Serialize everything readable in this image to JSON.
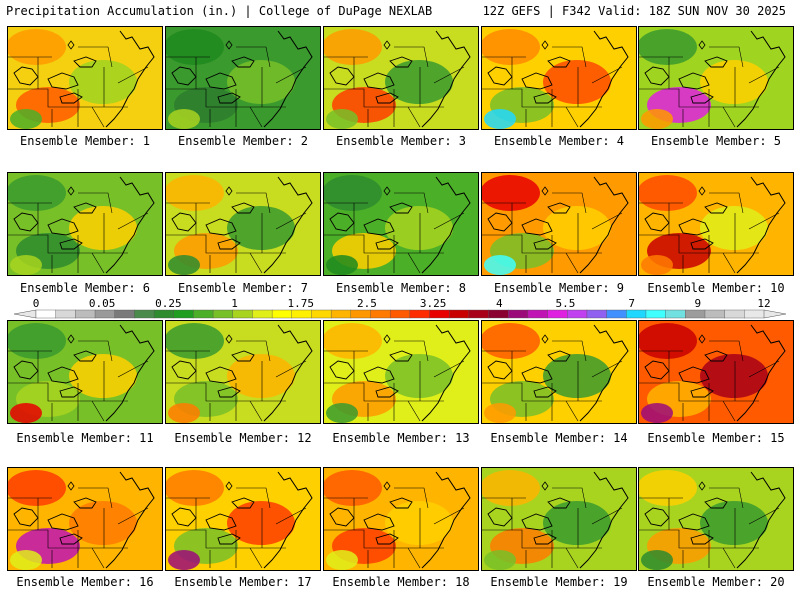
{
  "header": {
    "left": "Precipitation Accumulation (in.) | College of DuPage NEXLAB",
    "right": "12Z GEFS | F342 Valid: 18Z SUN NOV 30 2025"
  },
  "colorbar": {
    "tick_labels": [
      "0",
      "0.05",
      "0.25",
      "1",
      "1.75",
      "2.5",
      "3.25",
      "4",
      "5.5",
      "7",
      "9",
      "12"
    ],
    "colors": [
      "#ffffff",
      "#d8d8d8",
      "#bcbcbc",
      "#9a9a9a",
      "#7a7a7a",
      "#4a8a4a",
      "#2e8b2e",
      "#1f9e1f",
      "#4caf28",
      "#78c028",
      "#a8d420",
      "#e0ef1a",
      "#ffff00",
      "#fff000",
      "#ffd800",
      "#ffb400",
      "#ff9800",
      "#ff7a00",
      "#ff5a00",
      "#ff2c00",
      "#e80000",
      "#c80000",
      "#a80018",
      "#8a0030",
      "#9c0a7a",
      "#c014b4",
      "#e020e0",
      "#c040f0",
      "#9060f0",
      "#4090ff",
      "#20d8ff",
      "#40ffff",
      "#70e0e0",
      "#9c9c9c",
      "#bcbcbc",
      "#d8d8d8",
      "#e8e8e8"
    ]
  },
  "members": [
    {
      "label": "Ensemble Member: 1",
      "tone": "#f4d010",
      "patches": [
        "#ff9a00",
        "#9fd420",
        "#ff5a00",
        "#4caf28"
      ]
    },
    {
      "label": "Ensemble Member: 2",
      "tone": "#3a9a2e",
      "patches": [
        "#1f8a1f",
        "#78c028",
        "#2e7d2e",
        "#a8d420"
      ]
    },
    {
      "label": "Ensemble Member: 3",
      "tone": "#c8dc20",
      "patches": [
        "#ff9a00",
        "#3a9a2e",
        "#ff3c00",
        "#78c028"
      ]
    },
    {
      "label": "Ensemble Member: 4",
      "tone": "#ffd000",
      "patches": [
        "#ff8a00",
        "#ff4a00",
        "#78c028",
        "#20d8ff"
      ]
    },
    {
      "label": "Ensemble Member: 5",
      "tone": "#9fd420",
      "patches": [
        "#3a9a2e",
        "#ffd000",
        "#e020e0",
        "#ff9a00"
      ]
    },
    {
      "label": "Ensemble Member: 6",
      "tone": "#78c028",
      "patches": [
        "#3a9a2e",
        "#ffd000",
        "#2e8b2e",
        "#a8d420"
      ]
    },
    {
      "label": "Ensemble Member: 7",
      "tone": "#c8dc20",
      "patches": [
        "#ffb400",
        "#3a9a2e",
        "#ff9a00",
        "#2e8b2e"
      ]
    },
    {
      "label": "Ensemble Member: 8",
      "tone": "#4caf28",
      "patches": [
        "#2e8b2e",
        "#a8d420",
        "#ffd000",
        "#1f8a1f"
      ]
    },
    {
      "label": "Ensemble Member: 9",
      "tone": "#ff9a00",
      "patches": [
        "#e80000",
        "#ffd000",
        "#78c028",
        "#40ffff"
      ]
    },
    {
      "label": "Ensemble Member: 10",
      "tone": "#ffb400",
      "patches": [
        "#ff4a00",
        "#e0ef1a",
        "#c80000",
        "#ff7a00"
      ]
    },
    {
      "label": "Ensemble Member: 11",
      "tone": "#78c028",
      "patches": [
        "#3a9a2e",
        "#ffd000",
        "#a8d420",
        "#e80000"
      ]
    },
    {
      "label": "Ensemble Member: 12",
      "tone": "#c8dc20",
      "patches": [
        "#3a9a2e",
        "#ffb400",
        "#78c028",
        "#ff7a00"
      ]
    },
    {
      "label": "Ensemble Member: 13",
      "tone": "#e0ef1a",
      "patches": [
        "#ffb400",
        "#78c028",
        "#ff9a00",
        "#3a9a2e"
      ]
    },
    {
      "label": "Ensemble Member: 14",
      "tone": "#ffd000",
      "patches": [
        "#ff5a00",
        "#3a9a2e",
        "#78c028",
        "#ff9a00"
      ]
    },
    {
      "label": "Ensemble Member: 15",
      "tone": "#ff5a00",
      "patches": [
        "#c80000",
        "#a80018",
        "#ffb400",
        "#9c0a7a"
      ]
    },
    {
      "label": "Ensemble Member: 16",
      "tone": "#ffb400",
      "patches": [
        "#ff3c00",
        "#ff7a00",
        "#c014b4",
        "#e0ef1a"
      ]
    },
    {
      "label": "Ensemble Member: 17",
      "tone": "#ffd000",
      "patches": [
        "#ff7a00",
        "#ff3c00",
        "#78c028",
        "#9c0a7a"
      ]
    },
    {
      "label": "Ensemble Member: 18",
      "tone": "#ffb400",
      "patches": [
        "#ff5a00",
        "#ffd000",
        "#ff3c00",
        "#e0ef1a"
      ]
    },
    {
      "label": "Ensemble Member: 19",
      "tone": "#a8d420",
      "patches": [
        "#ffb400",
        "#3a9a2e",
        "#ff7a00",
        "#78c028"
      ]
    },
    {
      "label": "Ensemble Member: 20",
      "tone": "#a8d420",
      "patches": [
        "#ffd000",
        "#3a9a2e",
        "#ff9a00",
        "#2e8b2e"
      ]
    }
  ]
}
